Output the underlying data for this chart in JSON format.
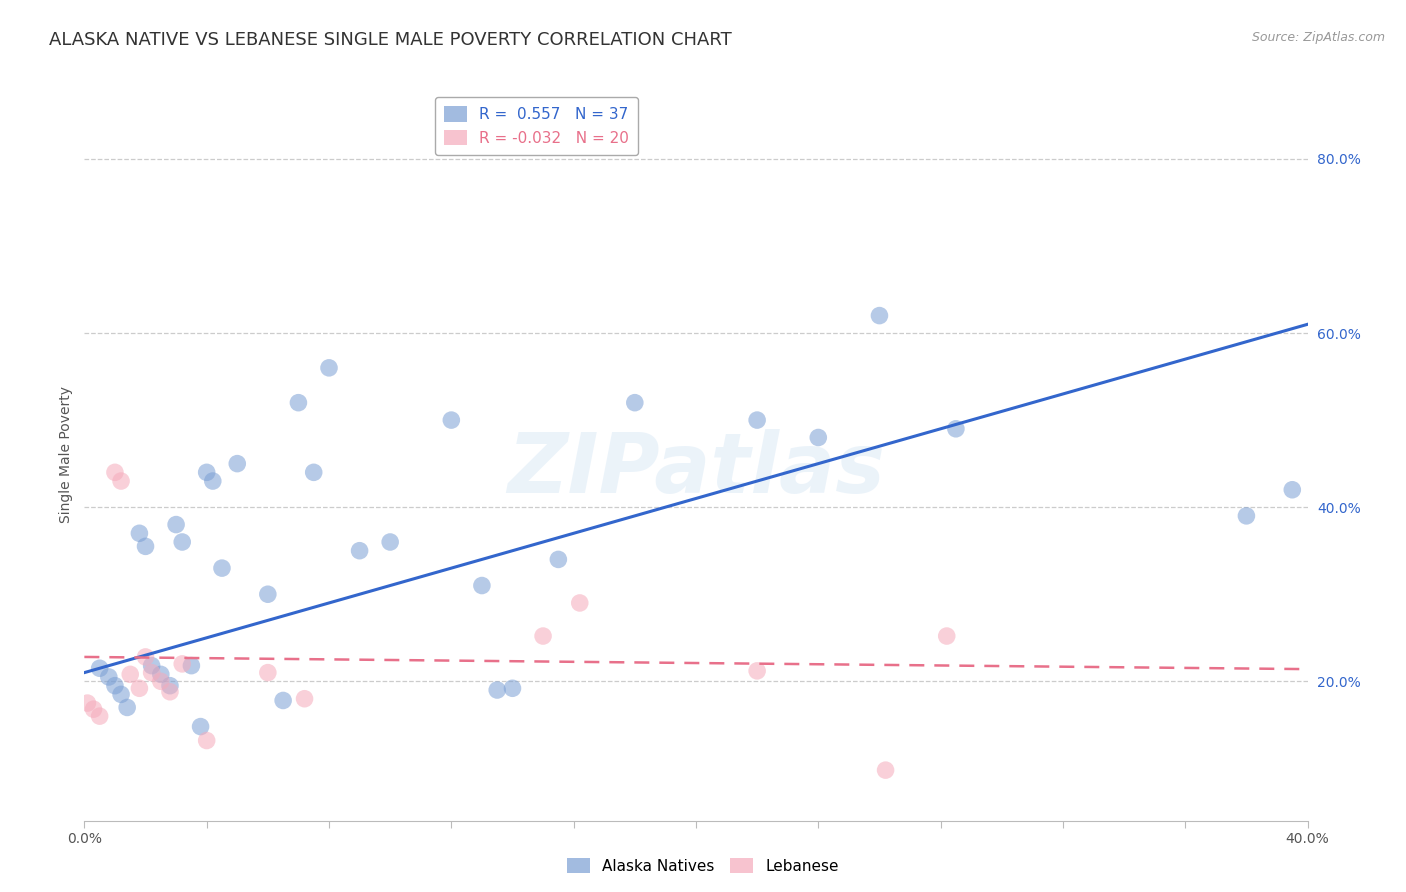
{
  "title": "ALASKA NATIVE VS LEBANESE SINGLE MALE POVERTY CORRELATION CHART",
  "source": "Source: ZipAtlas.com",
  "ylabel": "Single Male Poverty",
  "ytick_values": [
    0.2,
    0.4,
    0.6,
    0.8
  ],
  "xlim": [
    0.0,
    0.4
  ],
  "ylim": [
    0.04,
    0.88
  ],
  "alaska_R": 0.557,
  "alaska_N": 37,
  "lebanese_R": -0.032,
  "lebanese_N": 20,
  "alaska_color": "#7B9FD4",
  "lebanese_color": "#F5AABB",
  "alaska_line_color": "#3366CC",
  "lebanese_line_color": "#E8708A",
  "watermark": "ZIPatlas",
  "alaska_scatter_x": [
    0.005,
    0.008,
    0.01,
    0.012,
    0.014,
    0.018,
    0.02,
    0.022,
    0.025,
    0.028,
    0.03,
    0.032,
    0.035,
    0.038,
    0.04,
    0.042,
    0.045,
    0.05,
    0.06,
    0.065,
    0.07,
    0.075,
    0.08,
    0.09,
    0.1,
    0.12,
    0.13,
    0.135,
    0.14,
    0.155,
    0.18,
    0.22,
    0.24,
    0.26,
    0.285,
    0.38,
    0.395
  ],
  "alaska_scatter_y": [
    0.215,
    0.205,
    0.195,
    0.185,
    0.17,
    0.37,
    0.355,
    0.218,
    0.208,
    0.195,
    0.38,
    0.36,
    0.218,
    0.148,
    0.44,
    0.43,
    0.33,
    0.45,
    0.3,
    0.178,
    0.52,
    0.44,
    0.56,
    0.35,
    0.36,
    0.5,
    0.31,
    0.19,
    0.192,
    0.34,
    0.52,
    0.5,
    0.48,
    0.62,
    0.49,
    0.39,
    0.42
  ],
  "lebanese_scatter_x": [
    0.001,
    0.003,
    0.005,
    0.01,
    0.012,
    0.015,
    0.018,
    0.02,
    0.022,
    0.025,
    0.028,
    0.032,
    0.04,
    0.06,
    0.072,
    0.15,
    0.162,
    0.22,
    0.262,
    0.282
  ],
  "lebanese_scatter_y": [
    0.175,
    0.168,
    0.16,
    0.44,
    0.43,
    0.208,
    0.192,
    0.228,
    0.21,
    0.2,
    0.188,
    0.22,
    0.132,
    0.21,
    0.18,
    0.252,
    0.29,
    0.212,
    0.098,
    0.252
  ],
  "alaska_trend_x": [
    0.0,
    0.4
  ],
  "alaska_trend_y": [
    0.21,
    0.61
  ],
  "lebanese_trend_x": [
    0.0,
    0.4
  ],
  "lebanese_trend_y": [
    0.228,
    0.214
  ],
  "grid_color": "#CCCCCC",
  "background_color": "#FFFFFF",
  "title_fontsize": 13,
  "axis_label_fontsize": 10,
  "tick_label_fontsize": 10,
  "legend_fontsize": 11,
  "xtick_positions": [
    0.0,
    0.04,
    0.08,
    0.12,
    0.16,
    0.2,
    0.24,
    0.28,
    0.32,
    0.36,
    0.4
  ]
}
